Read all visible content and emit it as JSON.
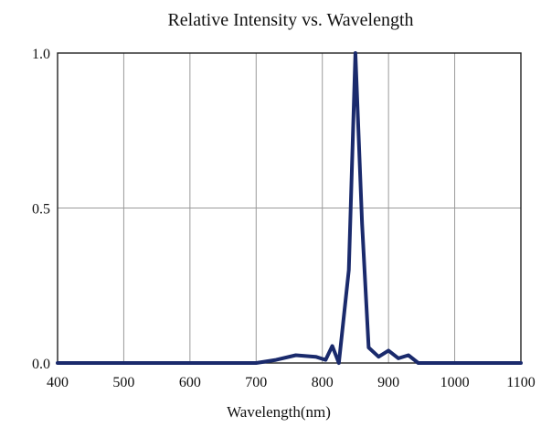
{
  "chart_data": {
    "type": "line",
    "title": "Relative Intensity vs. Wavelength",
    "xlabel": "Wavelength(nm)",
    "ylabel": "",
    "xlim": [
      400,
      1100
    ],
    "ylim": [
      0,
      1.0
    ],
    "x_ticks": [
      "400",
      "500",
      "600",
      "700",
      "800",
      "900",
      "1000",
      "1100"
    ],
    "y_ticks": [
      "0.0",
      "0.5",
      "1.0"
    ],
    "grid": true,
    "series": [
      {
        "color": "#1a2a6c",
        "points": [
          [
            400,
            0.0
          ],
          [
            650,
            0.0
          ],
          [
            700,
            0.0
          ],
          [
            730,
            0.01
          ],
          [
            760,
            0.025
          ],
          [
            790,
            0.02
          ],
          [
            805,
            0.01
          ],
          [
            815,
            0.055
          ],
          [
            825,
            0.0
          ],
          [
            840,
            0.3
          ],
          [
            850,
            1.0
          ],
          [
            860,
            0.45
          ],
          [
            870,
            0.05
          ],
          [
            885,
            0.02
          ],
          [
            900,
            0.04
          ],
          [
            915,
            0.015
          ],
          [
            930,
            0.025
          ],
          [
            945,
            0.0
          ],
          [
            1000,
            0.0
          ],
          [
            1100,
            0.0
          ]
        ]
      }
    ]
  }
}
